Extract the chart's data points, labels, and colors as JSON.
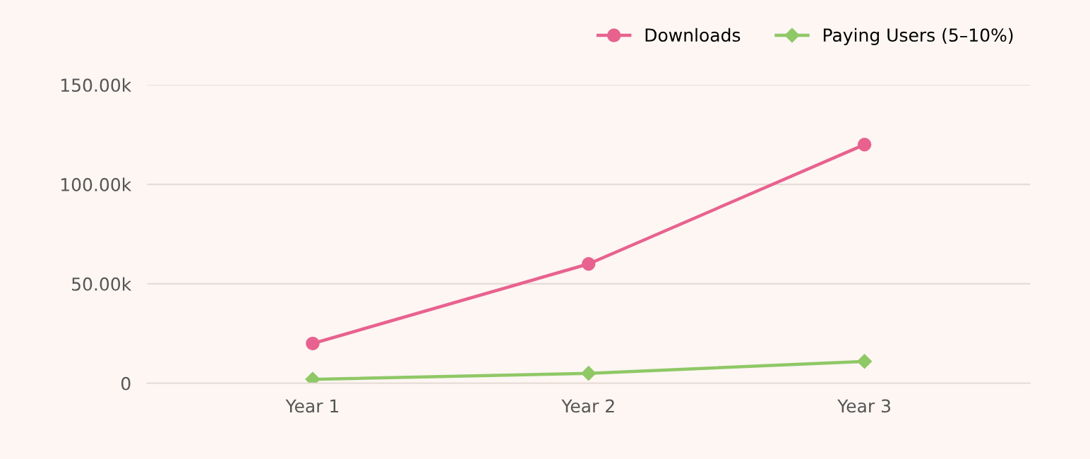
{
  "chart_data": {
    "type": "line",
    "categories": [
      "Year 1",
      "Year 2",
      "Year 3"
    ],
    "series": [
      {
        "name": "Downloads",
        "color": "#e8628f",
        "values": [
          20000,
          60000,
          120000
        ],
        "marker": "circle"
      },
      {
        "name": "Paying Users (5–10%)",
        "color": "#8fc866",
        "values": [
          2000,
          5000,
          11000
        ],
        "marker": "diamond"
      }
    ],
    "ylim": [
      0,
      150000
    ],
    "yticks": [
      {
        "value": 0,
        "label": "0"
      },
      {
        "value": 50000,
        "label": "50.00k"
      },
      {
        "value": 100000,
        "label": "100.00k"
      },
      {
        "value": 150000,
        "label": "150.00k"
      }
    ],
    "grid": "y",
    "legend": "top right",
    "line_style": "solid"
  }
}
